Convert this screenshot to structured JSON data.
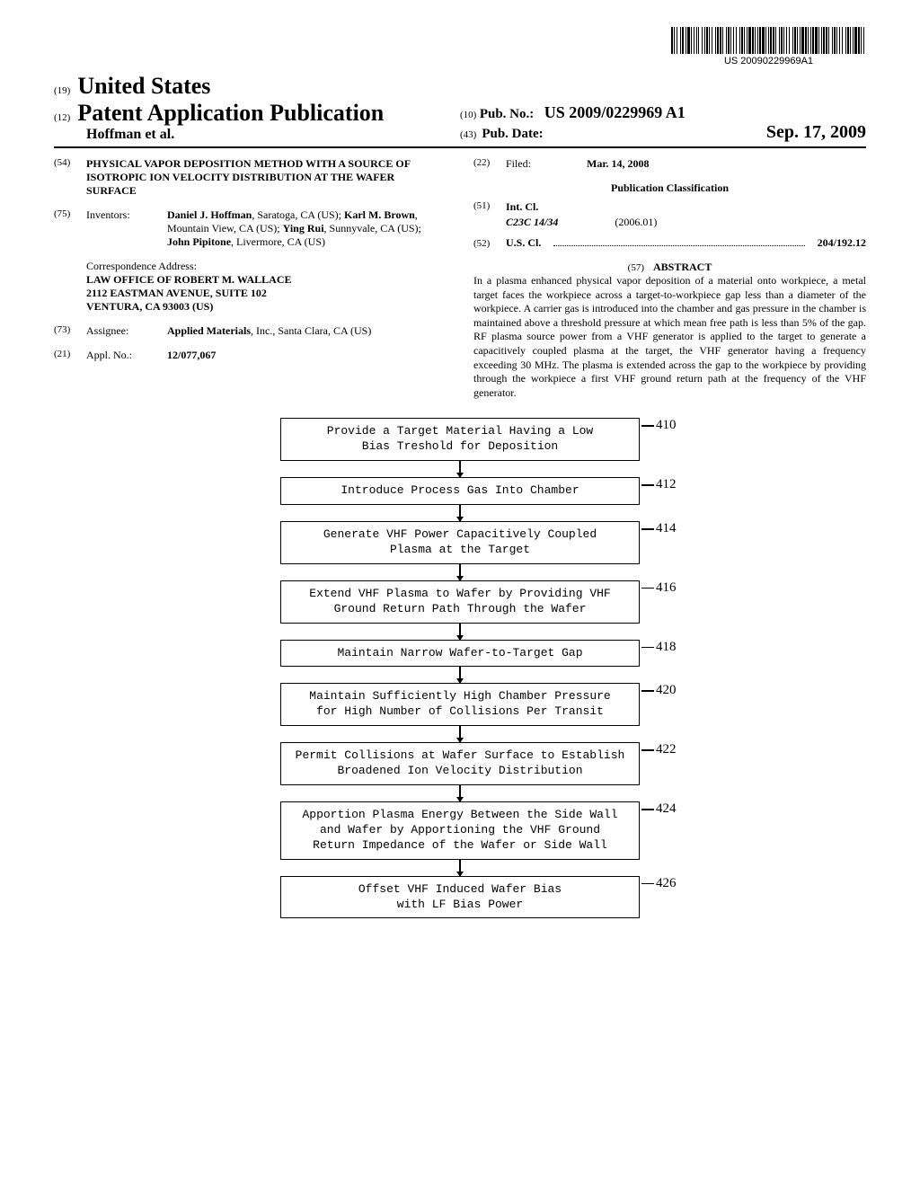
{
  "barcode_text": "US 20090229969A1",
  "header": {
    "num_19": "(19)",
    "country": "United States",
    "num_12": "(12)",
    "pub_type": "Patent Application Publication",
    "authors": "Hoffman et al.",
    "num_10": "(10)",
    "pub_no_label": "Pub. No.:",
    "pub_no_value": "US 2009/0229969 A1",
    "num_43": "(43)",
    "pub_date_label": "Pub. Date:",
    "pub_date_value": "Sep. 17, 2009"
  },
  "left": {
    "num_54": "(54)",
    "title": "PHYSICAL VAPOR DEPOSITION METHOD WITH A SOURCE OF ISOTROPIC ION VELOCITY DISTRIBUTION AT THE WAFER SURFACE",
    "num_75": "(75)",
    "inventors_label": "Inventors:",
    "inventors": "Daniel J. Hoffman, Saratoga, CA (US); Karl M. Brown, Mountain View, CA (US); Ying Rui, Sunnyvale, CA (US); John Pipitone, Livermore, CA (US)",
    "corr_label": "Correspondence Address:",
    "corr_1": "LAW OFFICE OF ROBERT M. WALLACE",
    "corr_2": "2112 EASTMAN AVENUE, SUITE 102",
    "corr_3": "VENTURA, CA 93003 (US)",
    "num_73": "(73)",
    "assignee_label": "Assignee:",
    "assignee": "Applied Materials, Inc., Santa Clara, CA (US)",
    "num_21": "(21)",
    "appl_label": "Appl. No.:",
    "appl_value": "12/077,067"
  },
  "right": {
    "num_22": "(22)",
    "filed_label": "Filed:",
    "filed_value": "Mar. 14, 2008",
    "classification_heading": "Publication Classification",
    "num_51": "(51)",
    "int_cl_label": "Int. Cl.",
    "int_cl_code": "C23C 14/34",
    "int_cl_year": "(2006.01)",
    "num_52": "(52)",
    "us_cl_label": "U.S. Cl.",
    "us_cl_value": "204/192.12",
    "num_57": "(57)",
    "abstract_label": "ABSTRACT",
    "abstract": "In a plasma enhanced physical vapor deposition of a material onto workpiece, a metal target faces the workpiece across a target-to-workpiece gap less than a diameter of the workpiece. A carrier gas is introduced into the chamber and gas pressure in the chamber is maintained above a threshold pressure at which mean free path is less than 5% of the gap. RF plasma source power from a VHF generator is applied to the target to generate a capacitively coupled plasma at the target, the VHF generator having a frequency exceeding 30 MHz. The plasma is extended across the gap to the workpiece by providing through the workpiece a first VHF ground return path at the frequency of the VHF generator."
  },
  "flowchart": {
    "boxes": [
      {
        "text": "Provide a Target Material Having a Low\nBias Treshold for Deposition",
        "label": "410"
      },
      {
        "text": "Introduce Process Gas Into Chamber",
        "label": "412"
      },
      {
        "text": "Generate VHF Power Capacitively Coupled\nPlasma at the Target",
        "label": "414"
      },
      {
        "text": "Extend VHF Plasma to Wafer by Providing VHF\nGround Return Path Through the Wafer",
        "label": "416"
      },
      {
        "text": "Maintain Narrow Wafer-to-Target Gap",
        "label": "418"
      },
      {
        "text": "Maintain Sufficiently High Chamber Pressure\nfor High Number of Collisions Per Transit",
        "label": "420"
      },
      {
        "text": "Permit Collisions at Wafer Surface to Establish\nBroadened Ion Velocity Distribution",
        "label": "422"
      },
      {
        "text": "Apportion Plasma Energy Between the Side Wall\nand Wafer by Apportioning the VHF Ground\nReturn Impedance of the Wafer or Side Wall",
        "label": "424"
      },
      {
        "text": "Offset VHF Induced Wafer Bias\nwith LF Bias Power",
        "label": "426"
      }
    ]
  }
}
